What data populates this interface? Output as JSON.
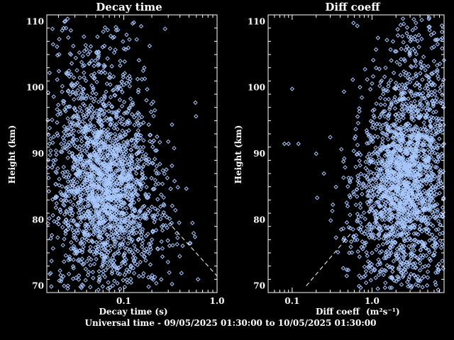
{
  "footer": "Universal time - 09/05/2025 01:30:00 to 10/05/2025 01:30:00",
  "colors": {
    "background": "#000000",
    "axes": "#ffffff",
    "points": "#a8c8ff",
    "dashed_line": "#ffffff"
  },
  "chart_data": [
    {
      "type": "scatter",
      "title": "Decay time",
      "xlabel": "Decay time (s)",
      "ylabel": "Height (km)",
      "xscale": "log",
      "xlim": [
        0.015,
        1.0
      ],
      "ylim": [
        69,
        111
      ],
      "xticks": [
        {
          "v": 0.1,
          "label": "0.1"
        },
        {
          "v": 1.0,
          "label": "1.0"
        }
      ],
      "yticks": [
        70,
        80,
        90,
        100,
        110
      ],
      "marker": "diamond",
      "point_count": 2200,
      "clusters": [
        {
          "x_center": 0.065,
          "y_center": 86,
          "x_spread_dex": 0.25,
          "y_spread": 5,
          "share": 0.45
        },
        {
          "x_center": 0.05,
          "y_center": 95,
          "x_spread_dex": 0.3,
          "y_spread": 8,
          "share": 0.25
        },
        {
          "x_center": 0.07,
          "y_center": 78,
          "x_spread_dex": 0.35,
          "y_spread": 6,
          "share": 0.3
        }
      ],
      "dashed_line": {
        "points": [
          [
            0.33,
            79
          ],
          [
            1.0,
            71.5
          ]
        ]
      }
    },
    {
      "type": "scatter",
      "title": "Diff coeff",
      "xlabel": "Diff coeff",
      "xlabel_units": "(m²s⁻¹)",
      "ylabel": "Height (km)",
      "xscale": "log",
      "xlim": [
        0.05,
        8.0
      ],
      "ylim": [
        69,
        111
      ],
      "xticks": [
        {
          "v": 0.1,
          "label": "0.1"
        },
        {
          "v": 1.0,
          "label": "1.0"
        }
      ],
      "yticks": [
        70,
        80,
        90,
        100,
        110
      ],
      "marker": "diamond",
      "point_count": 2200,
      "clusters": [
        {
          "x_center": 2.5,
          "y_center": 87,
          "x_spread_dex": 0.25,
          "y_spread": 5,
          "share": 0.45
        },
        {
          "x_center": 3.5,
          "y_center": 97,
          "x_spread_dex": 0.3,
          "y_spread": 8,
          "share": 0.25
        },
        {
          "x_center": 2.2,
          "y_center": 78,
          "x_spread_dex": 0.35,
          "y_spread": 6,
          "share": 0.3
        }
      ],
      "outliers": [
        [
          0.08,
          91.5
        ],
        [
          0.09,
          91.5
        ],
        [
          0.1,
          99.8
        ],
        [
          0.12,
          91.5
        ],
        [
          0.2,
          90
        ],
        [
          0.25,
          87
        ],
        [
          0.3,
          92.5
        ]
      ],
      "dashed_line": {
        "points": [
          [
            0.15,
            70
          ],
          [
            0.55,
            78
          ]
        ]
      }
    }
  ]
}
